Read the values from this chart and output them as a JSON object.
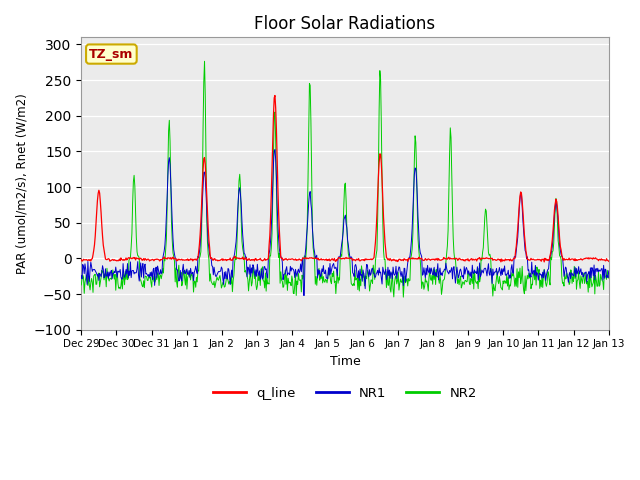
{
  "title": "Floor Solar Radiations",
  "xlabel": "Time",
  "ylabel": "PAR (umol/m2/s), Rnet (W/m2)",
  "ylim": [
    -100,
    310
  ],
  "yticks": [
    -100,
    -50,
    0,
    50,
    100,
    150,
    200,
    250,
    300
  ],
  "x_labels": [
    "Dec 29",
    "Dec 30",
    "Dec 31",
    "Jan 1",
    "Jan 2",
    "Jan 3",
    "Jan 4",
    "Jan 5",
    "Jan 6",
    "Jan 7",
    "Jan 8",
    "Jan 9",
    "Jan 10",
    "Jan 11",
    "Jan 12",
    "Jan 13"
  ],
  "legend_labels": [
    "q_line",
    "NR1",
    "NR2"
  ],
  "legend_colors": [
    "#ff0000",
    "#0000cc",
    "#00cc00"
  ],
  "annotation_text": "TZ_sm",
  "annotation_bg": "#ffffcc",
  "annotation_border": "#ccaa00",
  "bg_color": "#ebebeb",
  "title_fontsize": 12,
  "day_peaks_red": [
    96,
    0,
    0,
    142,
    0,
    230,
    0,
    0,
    148,
    0,
    0,
    0,
    93,
    83,
    0
  ],
  "day_peaks_blue": [
    0,
    0,
    140,
    125,
    100,
    155,
    92,
    60,
    0,
    130,
    0,
    0,
    90,
    80,
    0
  ],
  "day_peaks_green": [
    0,
    116,
    193,
    275,
    120,
    213,
    255,
    106,
    263,
    175,
    185,
    72,
    0,
    85,
    0
  ],
  "night_base_blue": -20,
  "night_base_green": -30,
  "num_days": 15
}
